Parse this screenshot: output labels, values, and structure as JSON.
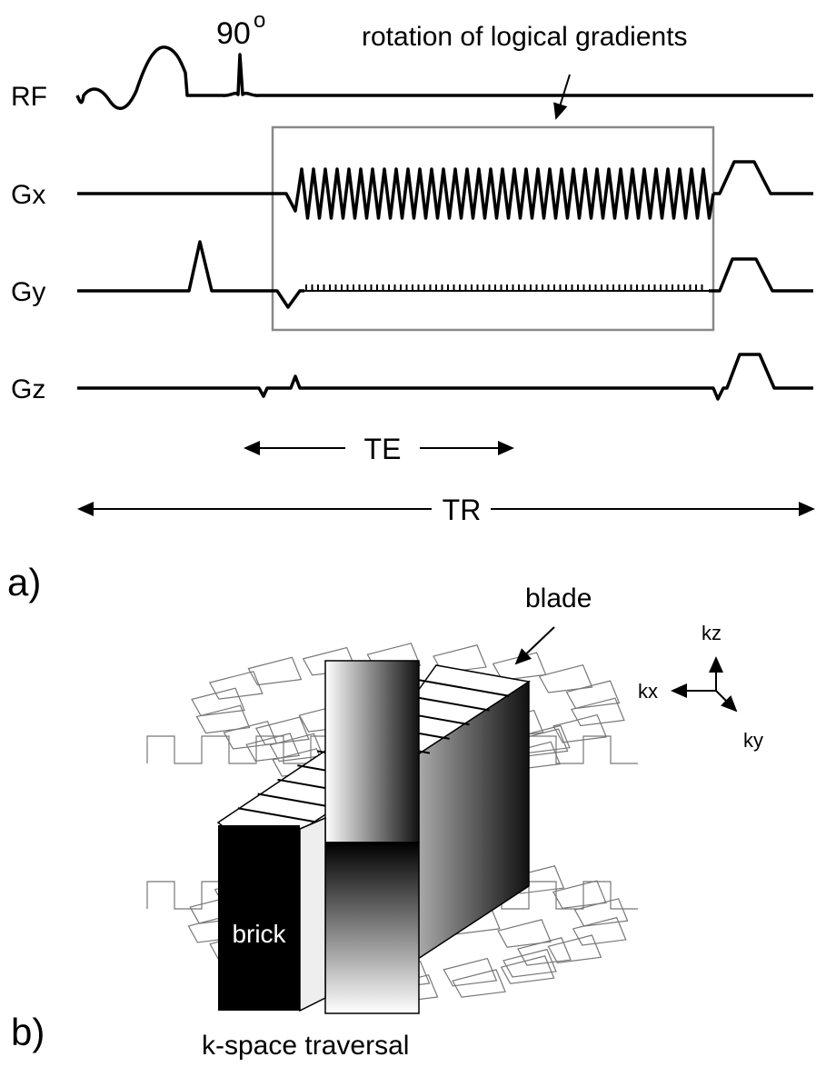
{
  "pulse_sequence": {
    "flip_angle": {
      "value": "90",
      "superscript": "o"
    },
    "annotation": "rotation of logical gradients",
    "channels": [
      "RF",
      "Gx",
      "Gy",
      "Gz"
    ],
    "te_label": "TE",
    "tr_label": "TR",
    "panel_label": "a)"
  },
  "kspace": {
    "blade_label": "blade",
    "brick_label": "brick",
    "axes": [
      "kz",
      "kx",
      "ky"
    ],
    "caption": "k-space traversal",
    "panel_label": "b)"
  }
}
